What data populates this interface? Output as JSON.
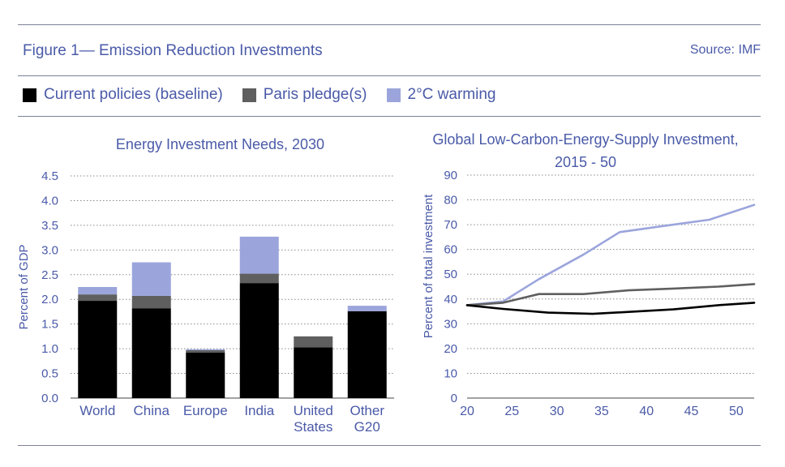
{
  "figure": {
    "title": "Figure 1— Emission Reduction Investments",
    "source": "Source: IMF"
  },
  "legend": [
    {
      "label": "Current policies (baseline)",
      "color": "#000000"
    },
    {
      "label": "Paris pledge(s)",
      "color": "#5f5f5f"
    },
    {
      "label": "2°C warming",
      "color": "#9ba5dc"
    }
  ],
  "chart_data": [
    {
      "type": "bar",
      "stacked": true,
      "title": "Energy Investment Needs, 2030",
      "ylabel": "Percent of GDP",
      "xlabel": "",
      "ylim": [
        0,
        4.5
      ],
      "yticks": [
        "0.0",
        "0.5",
        "1.0",
        "1.5",
        "2.0",
        "2.5",
        "3.0",
        "3.5",
        "4.0",
        "4.5"
      ],
      "ytick_values": [
        0,
        0.5,
        1.0,
        1.5,
        2.0,
        2.5,
        3.0,
        3.5,
        4.0,
        4.5
      ],
      "grid": true,
      "categories": [
        [
          "World"
        ],
        [
          "China"
        ],
        [
          "Europe"
        ],
        [
          "India"
        ],
        [
          "United",
          "States"
        ],
        [
          "Other",
          "G20"
        ]
      ],
      "series": [
        {
          "name": "Current policies (baseline)",
          "values": [
            1.97,
            1.82,
            0.92,
            2.33,
            1.03,
            1.76
          ]
        },
        {
          "name": "Paris pledge(s)",
          "values": [
            0.13,
            0.25,
            0.05,
            0.19,
            0.22,
            0.0
          ]
        },
        {
          "name": "2°C warming",
          "values": [
            0.15,
            0.68,
            0.02,
            0.75,
            0.0,
            0.11
          ]
        }
      ]
    },
    {
      "type": "line",
      "title": [
        "Global Low-Carbon-Energy-Supply Investment,",
        "2015 - 50"
      ],
      "ylabel": "Percent of total investment",
      "xlabel": "",
      "xlim": [
        20,
        52
      ],
      "ylim": [
        0,
        90
      ],
      "xticks": [
        20,
        25,
        30,
        35,
        40,
        45,
        50
      ],
      "yticks": [
        0,
        10,
        20,
        30,
        40,
        50,
        60,
        70,
        80,
        90
      ],
      "grid": true,
      "series": [
        {
          "name": "Current policies (baseline)",
          "x": [
            19,
            24,
            29,
            34,
            39,
            43,
            48,
            52
          ],
          "y": [
            37.5,
            36,
            34.5,
            34,
            35,
            35.8,
            37.5,
            38.5
          ]
        },
        {
          "name": "Paris pledge(s)",
          "x": [
            19,
            24,
            28,
            33,
            38,
            43,
            48,
            52
          ],
          "y": [
            37.5,
            38.5,
            42,
            42,
            43.5,
            44.2,
            45,
            46
          ]
        },
        {
          "name": "2°C warming",
          "x": [
            19,
            24,
            28,
            33,
            37,
            42,
            47,
            52
          ],
          "y": [
            37.5,
            39,
            48,
            58,
            67,
            69.5,
            72,
            78
          ]
        }
      ]
    }
  ]
}
